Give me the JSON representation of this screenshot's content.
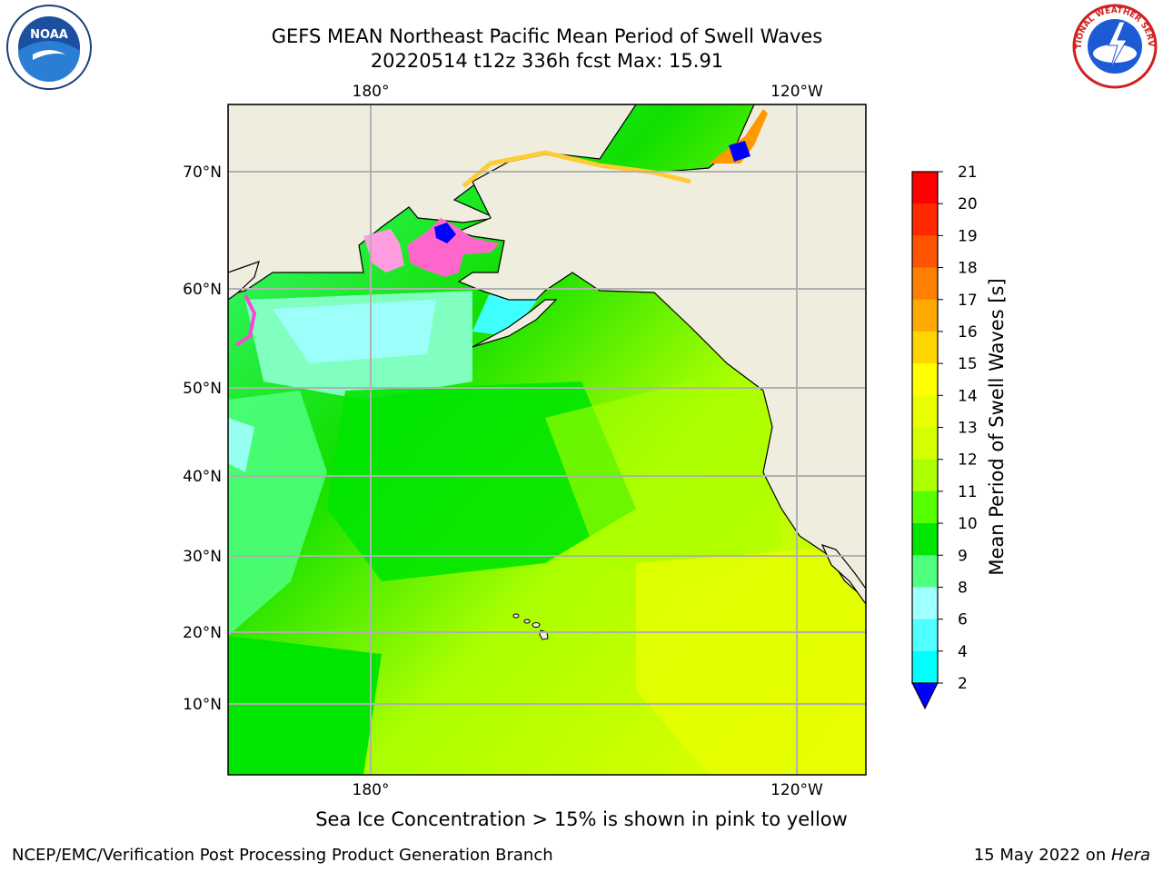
{
  "title": {
    "line1": "GEFS MEAN Northeast Pacific Mean Period of Swell Waves",
    "line2": "20220514 t12z 336h fcst   Max: 15.91"
  },
  "logos": {
    "left": "noaa-logo",
    "left_text": "NOAA",
    "right": "national-weather-service-logo",
    "right_text": "NATIONAL WEATHER SERVICE"
  },
  "map": {
    "lon_labels_top": [
      "180°",
      "120°W"
    ],
    "lon_labels_bottom": [
      "180°",
      "120°W"
    ],
    "lat_labels": [
      "70°N",
      "60°N",
      "50°N",
      "40°N",
      "30°N",
      "20°N",
      "10°N"
    ],
    "land_color": "#efedde",
    "grid_color": "#b0b0b0"
  },
  "colorbar": {
    "title": "Mean Period of Swell Waves [s]",
    "ticks": [
      "21",
      "20",
      "19",
      "18",
      "17",
      "16",
      "15",
      "14",
      "13",
      "12",
      "11",
      "10",
      "9",
      "8",
      "6",
      "4",
      "2"
    ],
    "colors_top_to_bottom": [
      "#ff0000",
      "#ff2a00",
      "#ff5500",
      "#ff8000",
      "#ffaa00",
      "#ffd500",
      "#ffff00",
      "#eaff00",
      "#d4ff00",
      "#aaff00",
      "#55ff00",
      "#00e600",
      "#50ff80",
      "#a0ffff",
      "#50ffff",
      "#00ffff",
      "#00aaff",
      "#0040ff"
    ],
    "extend_color": "#0000ff"
  },
  "caption": "Sea Ice Concentration > 15% is shown in pink to yellow",
  "footer": {
    "left": "NCEP/EMC/Verification Post Processing Product Generation Branch",
    "right_date": "15 May 2022 on ",
    "right_host": "Hera"
  }
}
